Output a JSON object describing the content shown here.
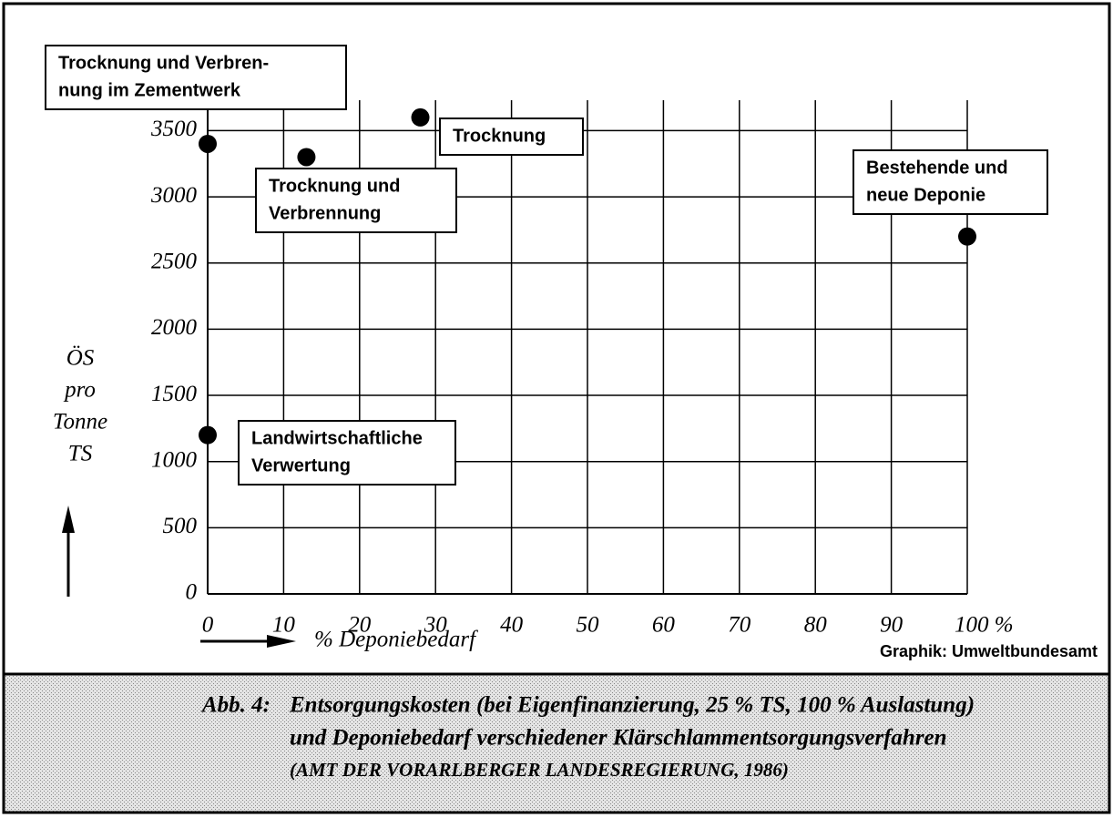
{
  "chart_data": {
    "type": "scatter",
    "x": [
      0,
      13,
      28,
      100,
      0
    ],
    "values": [
      3400,
      3300,
      3600,
      2700,
      1200
    ],
    "color": "#000000",
    "point_labels": [
      [
        "Trocknung und Verbren-",
        "nung  im Zementwerk"
      ],
      [
        "Trocknung und",
        "Verbrennung"
      ],
      [
        "Trocknung"
      ],
      [
        "Bestehende  und",
        "neue Deponie"
      ],
      [
        "Landwirtschaftliche",
        "Verwertung"
      ]
    ],
    "xlim": [
      0,
      100
    ],
    "xticks": [
      0,
      10,
      20,
      30,
      40,
      50,
      60,
      70,
      80,
      90,
      {
        "value": 100,
        "label": "100 %"
      }
    ],
    "ylim": [
      0,
      3730
    ],
    "yticks": [
      0,
      500,
      1000,
      1500,
      2000,
      2500,
      3000,
      3500
    ],
    "grid": true,
    "xlabel": "% Deponiebedarf",
    "ylabel": [
      "ÖS",
      "pro",
      "Tonne",
      "TS"
    ],
    "source": "Graphik: Umweltbundesamt",
    "caption": {
      "number": "Abb. 4:",
      "lines": [
        "Entsorgungskosten (bei Eigenfinanzierung, 25 % TS, 100 % Auslastung)",
        "und Deponiebedarf verschiedener Klärschlammentsorgungsverfahren",
        "(AMT DER VORARLBERGER LANDESREGIERUNG, 1986)"
      ]
    }
  }
}
